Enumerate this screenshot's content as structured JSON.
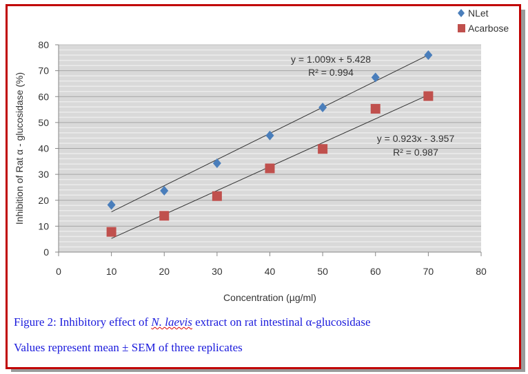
{
  "chart_data": {
    "type": "scatter",
    "xlabel": "Concentration (µg/ml)",
    "ylabel": "Inhibition of Rat α - glucosidase  (%)",
    "xlim": [
      0,
      80
    ],
    "ylim": [
      0,
      80
    ],
    "xticks": [
      "0",
      "10",
      "20",
      "30",
      "40",
      "50",
      "60",
      "70",
      "80"
    ],
    "yticks": [
      "0",
      "10",
      "20",
      "30",
      "40",
      "50",
      "60",
      "70",
      "80"
    ],
    "grid": true,
    "legend": "top-right",
    "series": [
      {
        "name": "NLet",
        "color": "#4a7ebb",
        "marker": "diamond",
        "x": [
          10,
          20,
          30,
          40,
          50,
          60,
          70
        ],
        "y": [
          18.2,
          23.7,
          34.3,
          45.0,
          55.8,
          67.4,
          76.0
        ],
        "trendline": {
          "slope": 1.009,
          "intercept": 5.428,
          "equation": "y = 1.009x + 5.428",
          "r2": "R² = 0.994"
        }
      },
      {
        "name": "Acarbose",
        "color": "#c0504d",
        "marker": "square",
        "x": [
          10,
          20,
          30,
          40,
          50,
          60,
          70
        ],
        "y": [
          7.8,
          14.0,
          21.6,
          32.3,
          39.8,
          55.3,
          60.2
        ],
        "trendline": {
          "slope": 0.923,
          "intercept": -3.957,
          "equation": "y = 0.923x - 3.957",
          "r2": "R² = 0.987"
        }
      }
    ]
  },
  "caption": {
    "line1_pre": "Figure 2: Inhibitory effect of ",
    "line1_species": "N. laevis",
    "line1_post": " extract on rat intestinal α-glucosidase",
    "line2": "Values represent mean ± SEM of three replicates"
  }
}
